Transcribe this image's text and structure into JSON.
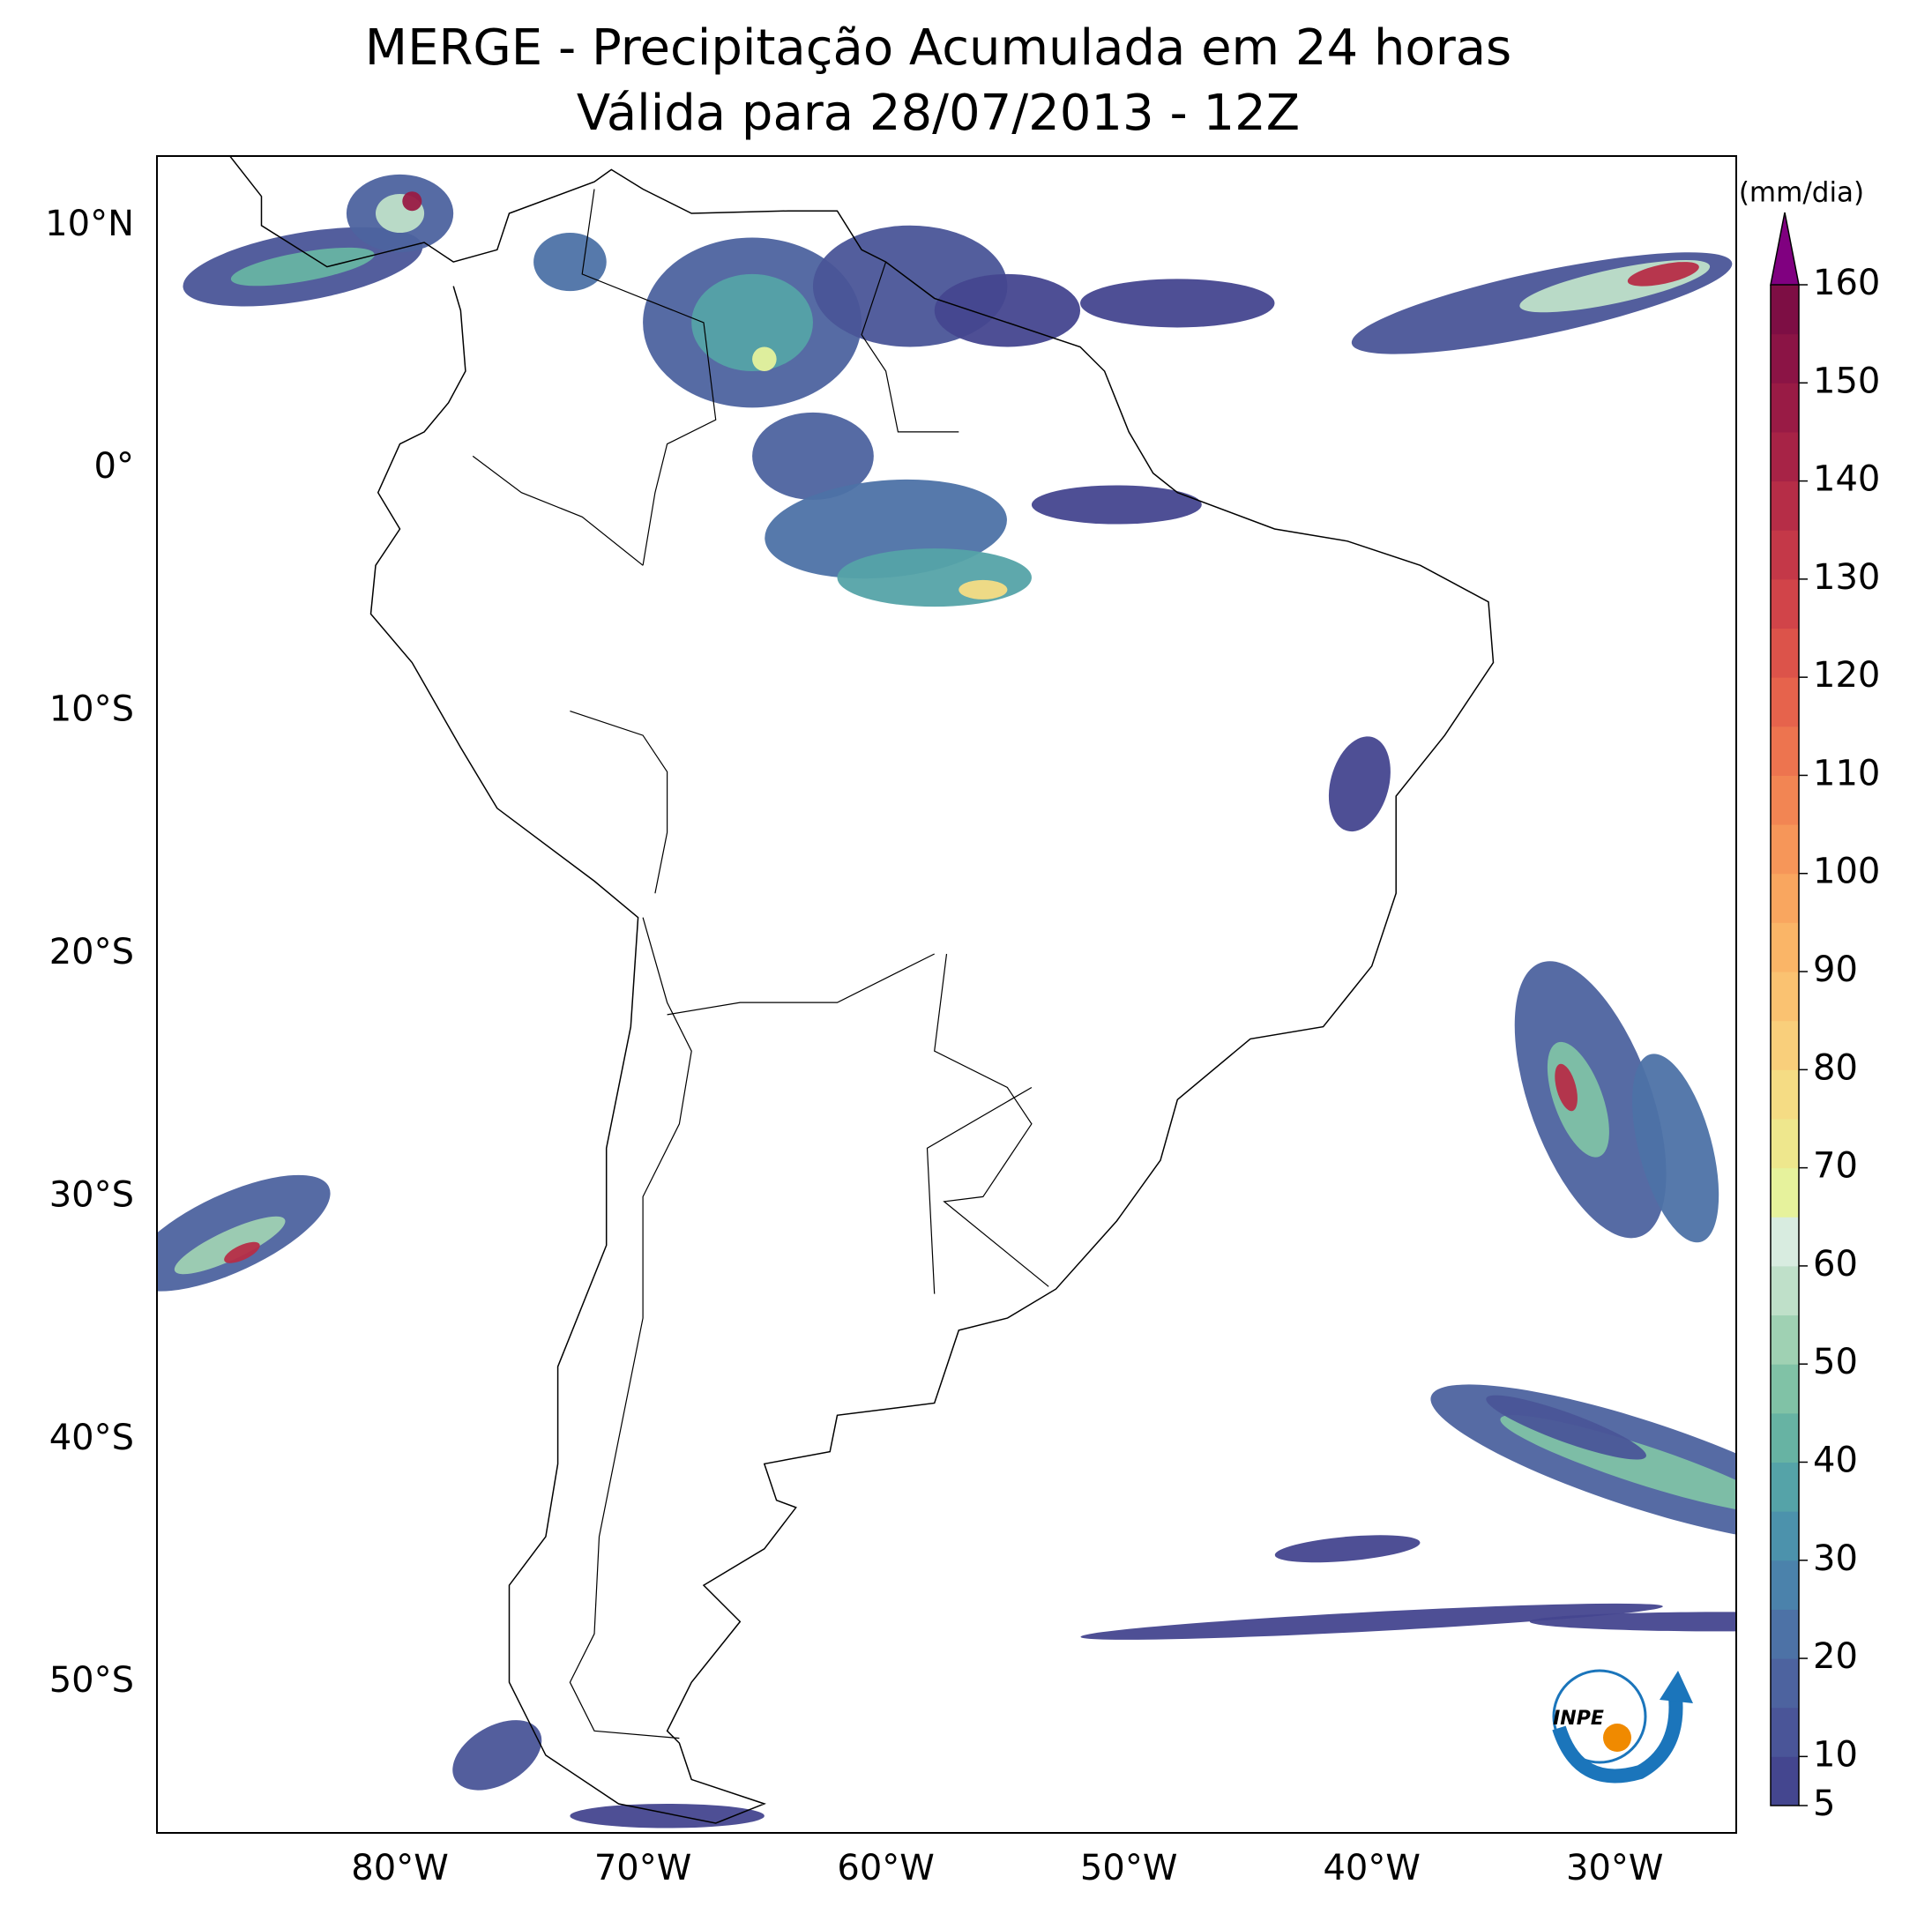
{
  "map": {
    "title": "MERGE - Precipitação Acumulada em 24 horas",
    "subtitle": "Válida para 28/07/2013 - 12Z",
    "xlim": [
      -90,
      -25
    ],
    "ylim": [
      -56.2,
      12.86
    ],
    "xticks": [
      {
        "value": -80,
        "label": "80°W"
      },
      {
        "value": -70,
        "label": "70°W"
      },
      {
        "value": -60,
        "label": "60°W"
      },
      {
        "value": -50,
        "label": "50°W"
      },
      {
        "value": -40,
        "label": "40°W"
      },
      {
        "value": -30,
        "label": "30°W"
      }
    ],
    "yticks": [
      {
        "value": 10,
        "label": "10°N"
      },
      {
        "value": 0,
        "label": "0°"
      },
      {
        "value": -10,
        "label": "10°S"
      },
      {
        "value": -20,
        "label": "20°S"
      },
      {
        "value": -30,
        "label": "30°S"
      },
      {
        "value": -40,
        "label": "40°S"
      },
      {
        "value": -50,
        "label": "50°S"
      }
    ],
    "colorbar": {
      "label": "(mm/dia)",
      "lim": [
        5,
        160
      ],
      "ticks": [
        5,
        10,
        20,
        30,
        40,
        50,
        60,
        70,
        80,
        90,
        100,
        110,
        120,
        130,
        140,
        150,
        160
      ],
      "colors": [
        "#44468f",
        "#4a5598",
        "#4d639f",
        "#4d72a6",
        "#4b82ab",
        "#4c92ac",
        "#55a3a8",
        "#67b3a3",
        "#80c2a6",
        "#9fd1b3",
        "#bfe0c9",
        "#d8ece0",
        "#e6f29c",
        "#eee78d",
        "#f5dc84",
        "#f9cf7b",
        "#fac271",
        "#fab567",
        "#f9a65f",
        "#f69659",
        "#f28553",
        "#ed744f",
        "#e6634c",
        "#dc534a",
        "#d14449",
        "#c43848",
        "#b62d47",
        "#a72346",
        "#991b45",
        "#8b1445",
        "#7d0e44"
      ],
      "extend_color": "#800080"
    },
    "logo_text": "INPE"
  }
}
